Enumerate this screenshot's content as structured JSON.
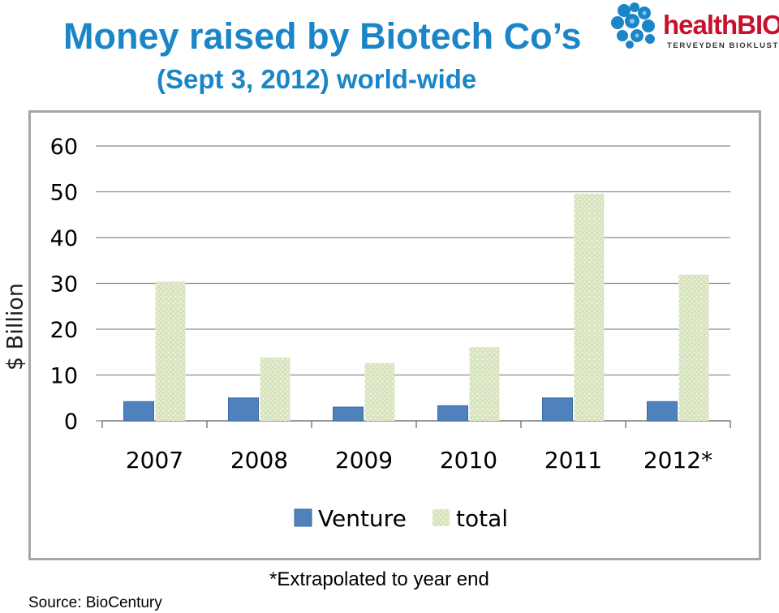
{
  "header": {
    "title": "Money raised by Biotech Co’s",
    "subtitle": "(Sept 3, 2012) world-wide"
  },
  "logo": {
    "wordmark": "healthBIO",
    "tagline": "TERVEYDEN BIOKLUSTERI",
    "color": "#c8102e",
    "icon": "molecule-cluster-icon"
  },
  "chart_data": {
    "type": "bar",
    "categories": [
      "2007",
      "2008",
      "2009",
      "2010",
      "2011",
      "2012*"
    ],
    "series": [
      {
        "name": "Venture",
        "values": [
          4.2,
          5.0,
          3.0,
          3.3,
          5.0,
          4.2
        ],
        "color": "#4f81bd"
      },
      {
        "name": "total",
        "values": [
          30.4,
          13.8,
          12.6,
          16.1,
          49.6,
          31.9
        ],
        "color": "#d7e4bd"
      }
    ],
    "title": "",
    "xlabel": "",
    "ylabel": "$ Billion",
    "ylim": [
      0,
      60
    ],
    "yticks": [
      "0",
      "10",
      "20",
      "30",
      "40",
      "50",
      "60"
    ],
    "grid": true,
    "legend": "bottom"
  },
  "footnote": "*Extrapolated to year end",
  "source": "Source: BioCentury"
}
